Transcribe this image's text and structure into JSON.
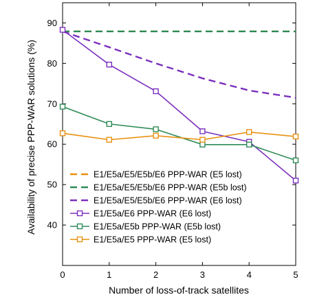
{
  "chart_data": {
    "type": "line",
    "xlabel": "Number of loss-of-track satellites",
    "ylabel": "Availability of precise PPP-WAR solutions (%)",
    "xlim": [
      0,
      5
    ],
    "ylim": [
      30,
      95
    ],
    "xticks": [
      0,
      1,
      2,
      3,
      4,
      5
    ],
    "yticks": [
      40,
      50,
      60,
      70,
      80,
      90
    ],
    "grid": false,
    "legend_position": "lower-left",
    "x": [
      0,
      1,
      2,
      3,
      4,
      5
    ],
    "series": [
      {
        "name": "E1/E5a/E5/E5b/E6 PPP-WAR (E5 lost)",
        "color": "#e8900f",
        "dash": "dashed",
        "marker": "none",
        "values": [
          87.9,
          87.9,
          87.9,
          87.9,
          87.9,
          87.9
        ]
      },
      {
        "name": "E1/E5a/E5/E5b/E6 PPP-WAR (E5b lost)",
        "color": "#2e8b57",
        "dash": "dashed",
        "marker": "none",
        "values": [
          87.9,
          87.9,
          87.9,
          87.9,
          87.9,
          87.9
        ]
      },
      {
        "name": "E1/E5a/E5/E5b/E6 PPP-WAR (E6 lost)",
        "color": "#7b2fbe",
        "dash": "dashed",
        "marker": "none",
        "values": [
          87.9,
          84.0,
          80.0,
          76.3,
          73.3,
          71.5
        ]
      },
      {
        "name": "E1/E5a/E6 PPP-WAR (E6 lost)",
        "color": "#7b2fbe",
        "dash": "solid",
        "marker": "square",
        "values": [
          88.3,
          79.7,
          73.1,
          63.2,
          60.6,
          51.0
        ]
      },
      {
        "name": "E1/E5a/E5b PPP-WAR (E5b lost)",
        "color": "#2e8b57",
        "dash": "solid",
        "marker": "square",
        "values": [
          69.3,
          65.0,
          63.7,
          59.9,
          59.9,
          56.0
        ]
      },
      {
        "name": "E1/E5a/E5 PPP-WAR (E5 lost)",
        "color": "#e8900f",
        "dash": "solid",
        "marker": "square",
        "values": [
          62.7,
          61.1,
          62.1,
          61.1,
          63.0,
          61.9
        ]
      }
    ]
  }
}
